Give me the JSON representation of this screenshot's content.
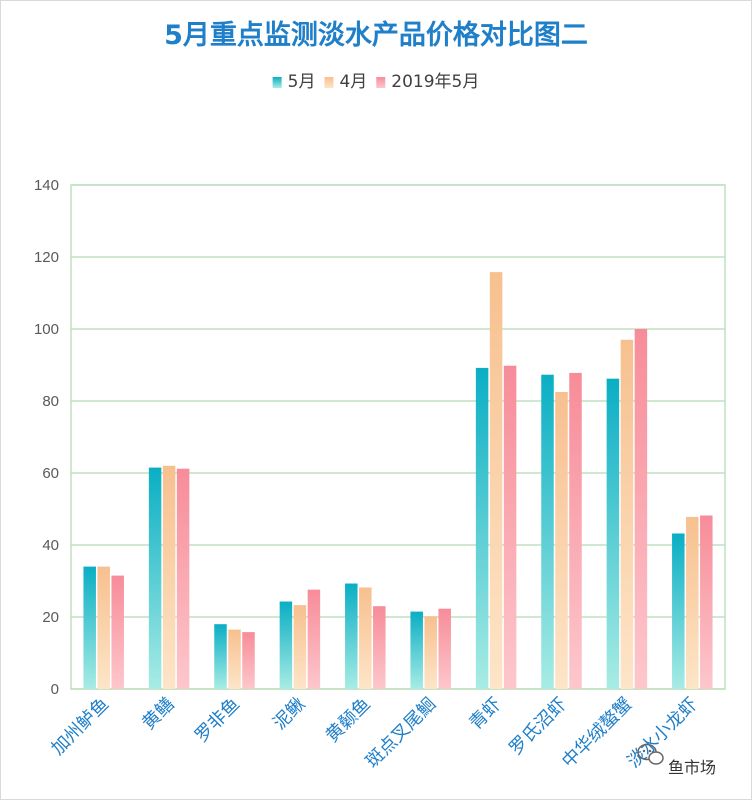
{
  "chart_data": {
    "type": "bar",
    "title": "5月重点监测淡水产品价格对比图二",
    "categories": [
      "加州鲈鱼",
      "黄鳝",
      "罗非鱼",
      "泥鳅",
      "黄颡鱼",
      "斑点叉尾鮰",
      "青虾",
      "罗氏沼虾",
      "中华绒螯蟹",
      "淡水小龙虾"
    ],
    "series": [
      {
        "name": "5月",
        "values": [
          34,
          61.5,
          18,
          24.3,
          29.3,
          21.5,
          89.2,
          87.3,
          86.2,
          43.2
        ]
      },
      {
        "name": "4月",
        "values": [
          34,
          62,
          16.5,
          23.3,
          28.2,
          20.2,
          115.8,
          82.5,
          97,
          47.8
        ]
      },
      {
        "name": "2019年5月",
        "values": [
          31.5,
          61.2,
          15.8,
          27.6,
          23,
          22.3,
          89.8,
          87.8,
          100,
          48.2
        ]
      }
    ],
    "xlabel": "",
    "ylabel": "",
    "ylim": [
      0,
      140
    ],
    "yticks": [
      0,
      20,
      40,
      60,
      80,
      100,
      120,
      140
    ],
    "grid": true,
    "legend_position": "top-center",
    "colors": {
      "series_top": [
        "#0aaec4",
        "#f7c08f",
        "#f78c99"
      ],
      "series_bottom": [
        "#a8ece4",
        "#fde5c8",
        "#fdc7cc"
      ],
      "grid": "#bfe0bf",
      "title": "#1f7fc9",
      "category_label": "#1f7fc9"
    }
  },
  "watermark": {
    "text": "鱼市场",
    "icon": "wechat-icon"
  }
}
